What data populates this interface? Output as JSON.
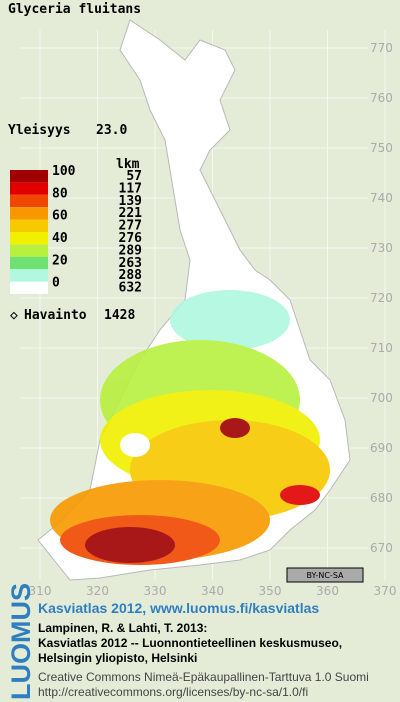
{
  "title": "Glyceria fluitans",
  "frequency": {
    "label": "Yleisyys",
    "value": "23.0"
  },
  "legend": {
    "levels": [
      "100",
      "80",
      "60",
      "40",
      "20",
      "0"
    ],
    "count_header": "lkm",
    "counts": [
      57,
      117,
      139,
      221,
      277,
      276,
      289,
      263,
      288,
      632
    ],
    "colors": [
      "#a00000",
      "#e00000",
      "#f04800",
      "#f89800",
      "#f8c800",
      "#f0f000",
      "#b8f040",
      "#70e070",
      "#b0f8e0",
      "#ffffff"
    ],
    "observation_label": "Havainto",
    "observation_count": 1428
  },
  "grid": {
    "easting_ticks": [
      310,
      320,
      330,
      340,
      350,
      360,
      370
    ],
    "northing_ticks": [
      670,
      680,
      690,
      700,
      710,
      720,
      730,
      740,
      750,
      760,
      770
    ]
  },
  "license_badge": "BY-NC-SA",
  "footer": {
    "logo": "LUOMUS",
    "link": "Kasviatlas 2012, www.luomus.fi/kasviatlas",
    "citation": [
      "Lampinen, R. & Lahti, T. 2013:",
      "Kasviatlas 2012 -- Luonnontieteellinen keskusmuseo,",
      "Helsingin yliopisto, Helsinki"
    ],
    "license": [
      "Creative Commons Nimeä-Epäkaupallinen-Tarttuva 1.0 Suomi",
      "http://creativecommons.org/licenses/by-nc-sa/1.0/fi"
    ]
  }
}
